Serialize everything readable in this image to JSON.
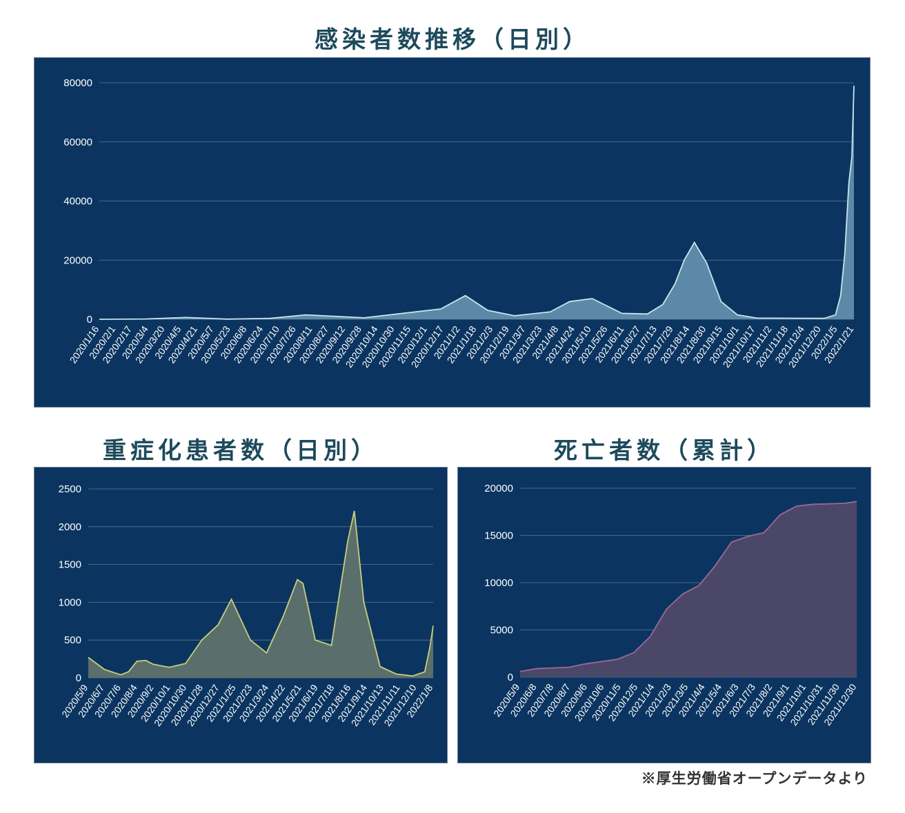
{
  "source_note": "※厚生労働省オープンデータより",
  "charts": {
    "cases": {
      "title": "感染者数推移（日別）",
      "y_ticks": [
        "0",
        "20000",
        "40000",
        "60000",
        "80000"
      ],
      "x_ticks": [
        "2020/1/16",
        "2020/2/1",
        "2020/2/17",
        "2020/3/4",
        "2020/3/20",
        "2020/4/5",
        "2020/4/21",
        "2020/5/7",
        "2020/5/23",
        "2020/6/8",
        "2020/6/24",
        "2020/7/10",
        "2020/7/26",
        "2020/8/11",
        "2020/8/27",
        "2020/9/12",
        "2020/9/28",
        "2020/10/14",
        "2020/10/30",
        "2020/11/15",
        "2020/12/1",
        "2020/12/17",
        "2021/1/2",
        "2021/1/18",
        "2021/2/3",
        "2021/2/19",
        "2021/3/7",
        "2021/3/23",
        "2021/4/8",
        "2021/4/24",
        "2021/5/10",
        "2021/5/26",
        "2021/6/11",
        "2021/6/27",
        "2021/7/13",
        "2021/7/29",
        "2021/8/14",
        "2021/8/30",
        "2021/9/15",
        "2021/10/1",
        "2021/10/17",
        "2021/11/2",
        "2021/11/18",
        "2021/12/4",
        "2021/12/20",
        "2022/1/5",
        "2022/1/21"
      ]
    },
    "severe": {
      "title": "重症化患者数（日別）",
      "y_ticks": [
        "0",
        "500",
        "1000",
        "1500",
        "2000",
        "2500"
      ],
      "x_ticks": [
        "2020/5/9",
        "2020/6/7",
        "2020/7/6",
        "2020/8/4",
        "2020/9/2",
        "2020/10/1",
        "2020/10/30",
        "2020/11/28",
        "2020/12/27",
        "2021/1/25",
        "2021/2/23",
        "2021/3/24",
        "2021/4/22",
        "2021/5/21",
        "2021/6/19",
        "2021/7/18",
        "2021/8/16",
        "2021/9/14",
        "2021/10/13",
        "2021/11/11",
        "2021/12/10",
        "2022/1/8"
      ]
    },
    "deaths": {
      "title": "死亡者数（累計）",
      "y_ticks": [
        "0",
        "5000",
        "10000",
        "15000",
        "20000"
      ],
      "x_ticks": [
        "2020/5/9",
        "2020/6/8",
        "2020/7/8",
        "2020/8/7",
        "2020/9/6",
        "2020/10/6",
        "2020/11/5",
        "2020/12/5",
        "2021/1/4",
        "2021/2/3",
        "2021/3/5",
        "2021/4/4",
        "2021/5/4",
        "2021/6/3",
        "2021/7/3",
        "2021/8/2",
        "2021/9/1",
        "2021/10/1",
        "2021/10/31",
        "2021/11/30",
        "2021/12/30"
      ]
    }
  },
  "chart_data": [
    {
      "type": "area",
      "title": "感染者数推移（日別）",
      "ylim": [
        0,
        80000
      ],
      "grid": true,
      "x_dates": [
        "2020-01-16",
        "2020-03-01",
        "2020-04-10",
        "2020-05-20",
        "2020-07-01",
        "2020-08-05",
        "2020-10-01",
        "2020-11-20",
        "2020-12-15",
        "2021-01-08",
        "2021-01-30",
        "2021-02-25",
        "2021-04-01",
        "2021-04-20",
        "2021-05-12",
        "2021-06-10",
        "2021-07-05",
        "2021-07-20",
        "2021-08-01",
        "2021-08-10",
        "2021-08-20",
        "2021-09-01",
        "2021-09-15",
        "2021-10-01",
        "2021-10-20",
        "2021-12-25",
        "2022-01-05",
        "2022-01-10",
        "2022-01-14",
        "2022-01-18",
        "2022-01-21",
        "2022-01-23"
      ],
      "values": [
        0,
        100,
        600,
        50,
        300,
        1500,
        500,
        2500,
        3500,
        8000,
        3000,
        1200,
        2500,
        6000,
        7000,
        2000,
        1800,
        5000,
        12000,
        20000,
        26000,
        19000,
        6000,
        1500,
        400,
        300,
        1500,
        8000,
        22000,
        46000,
        55000,
        79000
      ]
    },
    {
      "type": "area",
      "title": "重症化患者数（日別）",
      "ylim": [
        0,
        2500
      ],
      "grid": true,
      "x_dates": [
        "2020-05-09",
        "2020-06-07",
        "2020-07-06",
        "2020-07-20",
        "2020-08-04",
        "2020-08-20",
        "2020-09-02",
        "2020-10-01",
        "2020-10-30",
        "2020-11-28",
        "2020-12-27",
        "2021-01-20",
        "2021-02-23",
        "2021-03-24",
        "2021-04-22",
        "2021-05-18",
        "2021-05-28",
        "2021-06-19",
        "2021-07-18",
        "2021-08-16",
        "2021-08-28",
        "2021-09-14",
        "2021-10-13",
        "2021-11-11",
        "2021-12-10",
        "2022-01-01",
        "2022-01-10",
        "2022-01-16"
      ],
      "values": [
        270,
        110,
        40,
        80,
        220,
        230,
        180,
        140,
        190,
        500,
        700,
        1040,
        500,
        330,
        800,
        1300,
        1250,
        500,
        430,
        1800,
        2210,
        1000,
        150,
        50,
        25,
        80,
        400,
        690
      ]
    },
    {
      "type": "area",
      "title": "死亡者数（累計）",
      "ylim": [
        0,
        20000
      ],
      "grid": true,
      "x_dates": [
        "2020-05-09",
        "2020-06-08",
        "2020-07-08",
        "2020-08-07",
        "2020-09-06",
        "2020-10-06",
        "2020-11-05",
        "2020-12-05",
        "2021-01-04",
        "2021-02-03",
        "2021-03-05",
        "2021-04-04",
        "2021-05-04",
        "2021-06-03",
        "2021-07-03",
        "2021-08-02",
        "2021-09-01",
        "2021-10-01",
        "2021-10-31",
        "2021-11-30",
        "2021-12-30",
        "2022-01-20"
      ],
      "values": [
        600,
        900,
        980,
        1050,
        1400,
        1650,
        1900,
        2600,
        4300,
        7200,
        8800,
        9700,
        11800,
        14300,
        14900,
        15300,
        17200,
        18100,
        18300,
        18350,
        18400,
        18600
      ]
    }
  ]
}
